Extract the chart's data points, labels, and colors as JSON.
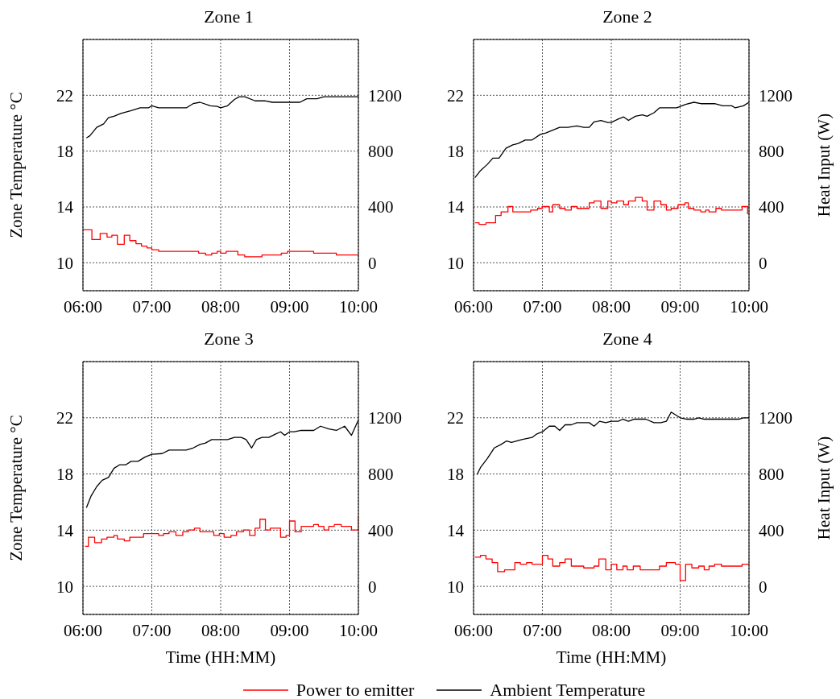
{
  "chart_data": [
    {
      "type": "line",
      "title": "Zone 1",
      "legend": "bottom",
      "ylabel": "Zone Temperature °C",
      "xlim": [
        6,
        10
      ],
      "xticks": [
        {
          "value": 6,
          "label": "06:00"
        },
        {
          "value": 7,
          "label": "07:00"
        },
        {
          "value": 8,
          "label": "08:00"
        },
        {
          "value": 9,
          "label": "09:00"
        },
        {
          "value": 10,
          "label": "10:00"
        }
      ],
      "ylim": [
        8,
        26
      ],
      "yticks": [
        10,
        14,
        18,
        22
      ],
      "y2lim": [
        -200,
        1600
      ],
      "y2ticks": [
        0,
        400,
        800,
        1200
      ],
      "grid": true,
      "line_style": "solid",
      "marker": "none",
      "series": [
        {
          "name": "Power to emitter",
          "type": "step",
          "axis": "y2",
          "color": "#ff0000",
          "x": [
            6,
            6.13,
            6.25,
            6.35,
            6.42,
            6.5,
            6.6,
            6.68,
            6.77,
            6.85,
            6.93,
            7,
            7.1,
            7.68,
            7.78,
            7.87,
            7.95,
            8,
            8.08,
            8.25,
            8.35,
            8.6,
            8.88,
            8.97,
            9.35,
            9.68,
            10
          ],
          "values": [
            236,
            167,
            210,
            184,
            197,
            133,
            197,
            159,
            137,
            120,
            107,
            94,
            82,
            69,
            56,
            69,
            82,
            69,
            82,
            56,
            43,
            56,
            69,
            82,
            69,
            56,
            56
          ]
        },
        {
          "name": "Ambient Temperature",
          "type": "line",
          "color": "#000000",
          "x": [
            6.05,
            6.1,
            6.2,
            6.3,
            6.37,
            6.45,
            6.55,
            6.7,
            6.83,
            6.95,
            7,
            7.1,
            7.5,
            7.6,
            7.7,
            7.85,
            7.95,
            8,
            8.1,
            8.2,
            8.27,
            8.35,
            8.5,
            8.65,
            8.75,
            9.15,
            9.25,
            9.4,
            9.5,
            10
          ],
          "values": [
            18.95,
            19.1,
            19.7,
            19.95,
            20.4,
            20.5,
            20.7,
            20.9,
            21.1,
            21.1,
            21.25,
            21.1,
            21.1,
            21.4,
            21.5,
            21.25,
            21.2,
            21.1,
            21.25,
            21.7,
            21.9,
            21.9,
            21.6,
            21.6,
            21.5,
            21.5,
            21.75,
            21.75,
            21.9,
            21.9
          ]
        }
      ]
    },
    {
      "type": "line",
      "title": "Zone 2",
      "y2label": "Heat Input (W)",
      "xlim": [
        6,
        10
      ],
      "xticks": [
        {
          "value": 6,
          "label": "06:00"
        },
        {
          "value": 7,
          "label": "07:00"
        },
        {
          "value": 8,
          "label": "08:00"
        },
        {
          "value": 9,
          "label": "09:00"
        },
        {
          "value": 10,
          "label": "10:00"
        }
      ],
      "ylim": [
        8,
        26
      ],
      "yticks": [
        10,
        14,
        18,
        22
      ],
      "y2lim": [
        -200,
        1600
      ],
      "y2ticks": [
        0,
        400,
        800,
        1200
      ],
      "grid": true,
      "line_style": "solid",
      "marker": "none",
      "series": [
        {
          "type": "step",
          "axis": "y2",
          "color": "#ff0000",
          "x": [
            6.02,
            6.08,
            6.18,
            6.32,
            6.4,
            6.5,
            6.57,
            6.83,
            6.93,
            7,
            7.1,
            7.15,
            7.25,
            7.33,
            7.42,
            7.5,
            7.68,
            7.75,
            7.85,
            7.95,
            8,
            8.08,
            8.18,
            8.25,
            8.35,
            8.45,
            8.52,
            8.62,
            8.72,
            8.8,
            8.87,
            8.97,
            9.07,
            9.12,
            9.2,
            9.3,
            9.37,
            9.42,
            9.52,
            9.6,
            9.9,
            9.98,
            10
          ],
          "values": [
            287,
            275,
            287,
            339,
            365,
            403,
            365,
            378,
            390,
            403,
            365,
            416,
            390,
            378,
            403,
            390,
            429,
            442,
            390,
            442,
            429,
            442,
            416,
            442,
            468,
            442,
            378,
            442,
            416,
            378,
            390,
            416,
            429,
            390,
            378,
            365,
            378,
            365,
            390,
            378,
            403,
            352,
            352
          ]
        },
        {
          "type": "line",
          "color": "#000000",
          "x": [
            6.02,
            6.1,
            6.2,
            6.28,
            6.37,
            6.47,
            6.57,
            6.65,
            6.75,
            6.85,
            6.97,
            7.05,
            7.25,
            7.37,
            7.5,
            7.6,
            7.68,
            7.75,
            7.85,
            7.95,
            8,
            8.1,
            8.18,
            8.25,
            8.35,
            8.45,
            8.52,
            8.62,
            8.7,
            8.95,
            9.08,
            9.2,
            9.3,
            9.5,
            9.62,
            9.75,
            9.8,
            9.92,
            10
          ],
          "values": [
            16.1,
            16.6,
            17.05,
            17.5,
            17.5,
            18.2,
            18.45,
            18.55,
            18.8,
            18.8,
            19.2,
            19.3,
            19.7,
            19.7,
            19.8,
            19.7,
            19.7,
            20.1,
            20.2,
            20.05,
            20.05,
            20.3,
            20.45,
            20.2,
            20.5,
            20.6,
            20.5,
            20.75,
            21.1,
            21.1,
            21.35,
            21.5,
            21.4,
            21.4,
            21.25,
            21.25,
            21.1,
            21.25,
            21.5
          ]
        }
      ]
    },
    {
      "type": "line",
      "title": "Zone 3",
      "ylabel": "Zone Temperature °C",
      "xlabel": "Time (HH:MM)",
      "xlim": [
        6,
        10
      ],
      "xticks": [
        {
          "value": 6,
          "label": "06:00"
        },
        {
          "value": 7,
          "label": "07:00"
        },
        {
          "value": 8,
          "label": "08:00"
        },
        {
          "value": 9,
          "label": "09:00"
        },
        {
          "value": 10,
          "label": "10:00"
        }
      ],
      "ylim": [
        8,
        26
      ],
      "yticks": [
        10,
        14,
        18,
        22
      ],
      "y2lim": [
        -200,
        1600
      ],
      "y2ticks": [
        0,
        400,
        800,
        1200
      ],
      "grid": true,
      "line_style": "solid",
      "marker": "none",
      "series": [
        {
          "type": "step",
          "axis": "y2",
          "color": "#ff0000",
          "x": [
            6.03,
            6.08,
            6.17,
            6.27,
            6.35,
            6.45,
            6.5,
            6.6,
            6.68,
            6.88,
            7.1,
            7.17,
            7.25,
            7.35,
            7.45,
            7.53,
            7.62,
            7.7,
            7.9,
            7.98,
            8.05,
            8.15,
            8.23,
            8.33,
            8.42,
            8.5,
            8.57,
            8.65,
            8.72,
            8.87,
            8.95,
            9,
            9.08,
            9.17,
            9.35,
            9.42,
            9.5,
            9.57,
            9.65,
            9.75,
            9.9,
            10
          ],
          "values": [
            285,
            350,
            311,
            337,
            350,
            362,
            337,
            324,
            350,
            375,
            362,
            375,
            388,
            362,
            388,
            401,
            414,
            388,
            362,
            375,
            350,
            362,
            388,
            401,
            362,
            414,
            478,
            401,
            414,
            350,
            362,
            465,
            388,
            427,
            440,
            427,
            401,
            427,
            440,
            427,
            401,
            500
          ]
        },
        {
          "type": "line",
          "color": "#000000",
          "x": [
            6.05,
            6.12,
            6.2,
            6.28,
            6.37,
            6.45,
            6.53,
            6.62,
            6.7,
            6.8,
            6.9,
            7,
            7.15,
            7.25,
            7.5,
            7.6,
            7.7,
            7.78,
            7.87,
            8.1,
            8.2,
            8.3,
            8.37,
            8.45,
            8.52,
            8.6,
            8.7,
            8.8,
            8.87,
            8.93,
            9,
            9.07,
            9.17,
            9.35,
            9.45,
            9.57,
            9.68,
            9.8,
            9.9,
            10
          ],
          "values": [
            15.6,
            16.45,
            17.1,
            17.55,
            17.75,
            18.4,
            18.65,
            18.65,
            18.9,
            18.9,
            19.2,
            19.4,
            19.45,
            19.7,
            19.7,
            19.85,
            20.1,
            20.2,
            20.45,
            20.45,
            20.6,
            20.6,
            20.45,
            19.85,
            20.45,
            20.6,
            20.6,
            20.85,
            21,
            20.75,
            21,
            21,
            21.1,
            21.1,
            21.4,
            21.2,
            21.1,
            21.4,
            20.75,
            21.85
          ]
        }
      ]
    },
    {
      "type": "line",
      "title": "Zone 4",
      "y2label": "Heat Input (W)",
      "xlabel": "Time (HH:MM)",
      "xlim": [
        6,
        10
      ],
      "xticks": [
        {
          "value": 6,
          "label": "06:00"
        },
        {
          "value": 7,
          "label": "07:00"
        },
        {
          "value": 8,
          "label": "08:00"
        },
        {
          "value": 9,
          "label": "09:00"
        },
        {
          "value": 10,
          "label": "10:00"
        }
      ],
      "ylim": [
        8,
        26
      ],
      "yticks": [
        10,
        14,
        18,
        22
      ],
      "y2lim": [
        -200,
        1600
      ],
      "y2ticks": [
        0,
        400,
        800,
        1200
      ],
      "grid": true,
      "line_style": "solid",
      "marker": "none",
      "series": [
        {
          "type": "step",
          "axis": "y2",
          "color": "#ff0000",
          "x": [
            6.02,
            6.1,
            6.18,
            6.27,
            6.35,
            6.45,
            6.6,
            6.68,
            6.77,
            6.85,
            7,
            7.08,
            7.15,
            7.25,
            7.33,
            7.42,
            7.6,
            7.75,
            7.82,
            7.92,
            8,
            8.08,
            8.17,
            8.23,
            8.32,
            8.42,
            8.7,
            8.8,
            8.93,
            9,
            9.08,
            9.17,
            9.27,
            9.35,
            9.42,
            9.5,
            9.6,
            9.9,
            10
          ],
          "values": [
            208,
            221,
            195,
            169,
            105,
            118,
            169,
            157,
            169,
            157,
            221,
            195,
            144,
            169,
            195,
            144,
            131,
            144,
            195,
            118,
            157,
            118,
            144,
            118,
            144,
            118,
            144,
            169,
            157,
            41,
            157,
            131,
            144,
            118,
            144,
            157,
            144,
            157,
            157
          ]
        },
        {
          "type": "line",
          "color": "#000000",
          "x": [
            6.05,
            6.1,
            6.2,
            6.3,
            6.4,
            6.48,
            6.55,
            6.7,
            6.85,
            6.92,
            7,
            7.1,
            7.18,
            7.25,
            7.33,
            7.42,
            7.5,
            7.68,
            7.75,
            7.83,
            7.92,
            8,
            8.1,
            8.17,
            8.25,
            8.33,
            8.5,
            8.62,
            8.72,
            8.8,
            8.87,
            9,
            9.1,
            9.2,
            9.27,
            9.35,
            9.85,
            9.92,
            10
          ],
          "values": [
            17.95,
            18.45,
            19.1,
            19.85,
            20.1,
            20.35,
            20.25,
            20.45,
            20.6,
            20.85,
            21,
            21.4,
            21.4,
            21.1,
            21.5,
            21.5,
            21.65,
            21.65,
            21.4,
            21.75,
            21.65,
            21.75,
            21.75,
            21.9,
            21.75,
            21.9,
            21.9,
            21.65,
            21.65,
            21.75,
            22.4,
            22,
            21.9,
            21.9,
            22,
            21.9,
            21.9,
            22,
            22
          ]
        }
      ]
    }
  ]
}
